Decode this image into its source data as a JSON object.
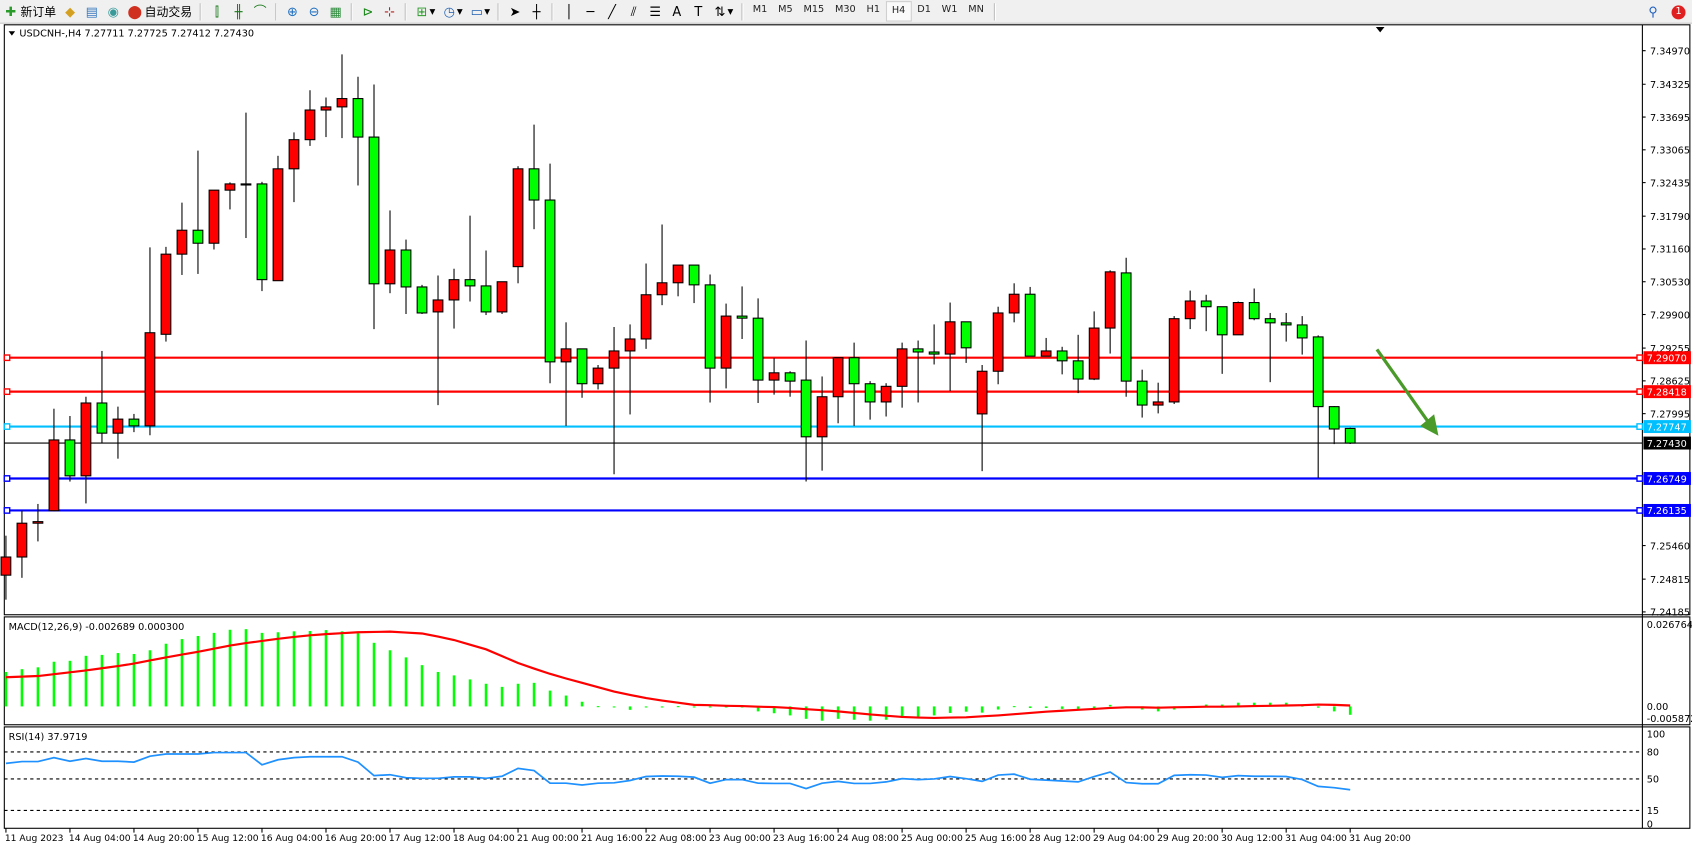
{
  "toolbar": {
    "new_order_label": "新订单",
    "auto_trading_label": "自动交易",
    "timeframes": [
      "M1",
      "M5",
      "M15",
      "M30",
      "H1",
      "H4",
      "D1",
      "W1",
      "MN"
    ],
    "active_timeframe": "H4",
    "notification_count": "1"
  },
  "chart": {
    "title": "USDCNH-,H4  7.27711 7.27725 7.27412 7.27430",
    "colors": {
      "up": "#ff0000",
      "down": "#00ff00",
      "macd_hist": "#00ff00",
      "macd_signal": "#ff0000",
      "rsi": "#1e90ff",
      "arrow": "#4a9a2a"
    }
  },
  "chart_data": [
    {
      "type": "candlestick",
      "title": "USDCNH-,H4  7.27711 7.27725 7.27412 7.27430",
      "ohlc_order": [
        "open",
        "high",
        "low",
        "close"
      ],
      "candles": [
        [
          7.24891,
          7.2565,
          7.2442,
          7.2524
        ],
        [
          7.2524,
          7.2613,
          7.2484,
          7.2589
        ],
        [
          7.2589,
          7.2626,
          7.2554,
          7.2592
        ],
        [
          7.2613,
          7.2809,
          7.2612,
          7.2749
        ],
        [
          7.2749,
          7.2795,
          7.2669,
          7.268
        ],
        [
          7.268,
          7.2832,
          7.2627,
          7.282
        ],
        [
          7.282,
          7.292,
          7.2743,
          7.2762
        ],
        [
          7.2762,
          7.2813,
          7.2713,
          7.2789
        ],
        [
          7.2789,
          7.2799,
          7.2764,
          7.2776
        ],
        [
          7.2776,
          7.3119,
          7.2758,
          7.2955
        ],
        [
          7.2952,
          7.312,
          7.2938,
          7.3106
        ],
        [
          7.3106,
          7.3205,
          7.3066,
          7.3152
        ],
        [
          7.3152,
          7.3305,
          7.3068,
          7.3127
        ],
        [
          7.3127,
          7.3229,
          7.3115,
          7.3229
        ],
        [
          7.3229,
          7.3244,
          7.3192,
          7.3241
        ],
        [
          7.3241,
          7.3378,
          7.3137,
          7.3241
        ],
        [
          7.3241,
          7.3245,
          7.3035,
          7.3057
        ],
        [
          7.3055,
          7.3295,
          7.3055,
          7.327
        ],
        [
          7.327,
          7.334,
          7.3206,
          7.3326
        ],
        [
          7.3326,
          7.3421,
          7.3314,
          7.3383
        ],
        [
          7.3383,
          7.3407,
          7.3331,
          7.3389
        ],
        [
          7.3389,
          7.349,
          7.3329,
          7.3405
        ],
        [
          7.3405,
          7.3447,
          7.3238,
          7.3331
        ],
        [
          7.3331,
          7.3432,
          7.2962,
          7.3049
        ],
        [
          7.3049,
          7.319,
          7.3031,
          7.3114
        ],
        [
          7.3114,
          7.3134,
          7.2991,
          7.3043
        ],
        [
          7.3043,
          7.3047,
          7.2991,
          7.2993
        ],
        [
          7.2995,
          7.3065,
          7.2816,
          7.3018
        ],
        [
          7.3018,
          7.3078,
          7.2963,
          7.3057
        ],
        [
          7.3057,
          7.318,
          7.3015,
          7.3045
        ],
        [
          7.3045,
          7.3113,
          7.2989,
          7.2995
        ],
        [
          7.2995,
          7.3053,
          7.2991,
          7.3053
        ],
        [
          7.3082,
          7.3275,
          7.305,
          7.327
        ],
        [
          7.327,
          7.3355,
          7.3154,
          7.321
        ],
        [
          7.321,
          7.328,
          7.2858,
          7.2899
        ],
        [
          7.2899,
          7.2975,
          7.2776,
          7.2924
        ],
        [
          7.2924,
          7.2924,
          7.283,
          7.2857
        ],
        [
          7.2857,
          7.2893,
          7.2846,
          7.2887
        ],
        [
          7.2887,
          7.2966,
          7.2683,
          7.292
        ],
        [
          7.292,
          7.2971,
          7.2798,
          7.2943
        ],
        [
          7.2943,
          7.3088,
          7.2924,
          7.3028
        ],
        [
          7.3028,
          7.3163,
          7.3008,
          7.3051
        ],
        [
          7.3051,
          7.3085,
          7.3025,
          7.3085
        ],
        [
          7.3085,
          7.3085,
          7.3012,
          7.3047
        ],
        [
          7.3047,
          7.3067,
          7.2821,
          7.2887
        ],
        [
          7.2887,
          7.3011,
          7.2848,
          7.2987
        ],
        [
          7.2987,
          7.3044,
          7.2943,
          7.2983
        ],
        [
          7.2983,
          7.3021,
          7.282,
          7.2864
        ],
        [
          7.2864,
          7.2906,
          7.2836,
          7.2878
        ],
        [
          7.2878,
          7.2881,
          7.2832,
          7.2862
        ],
        [
          7.2864,
          7.294,
          7.2669,
          7.2755
        ],
        [
          7.2755,
          7.2871,
          7.269,
          7.2832
        ],
        [
          7.2832,
          7.2907,
          7.2781,
          7.2907
        ],
        [
          7.2907,
          7.2936,
          7.2776,
          7.2857
        ],
        [
          7.2857,
          7.2862,
          7.2788,
          7.2822
        ],
        [
          7.2822,
          7.2858,
          7.2794,
          7.2852
        ],
        [
          7.2852,
          7.2936,
          7.2811,
          7.2924
        ],
        [
          7.2924,
          7.294,
          7.2821,
          7.2918
        ],
        [
          7.2918,
          7.2971,
          7.2894,
          7.2914
        ],
        [
          7.2914,
          7.3013,
          7.2843,
          7.2976
        ],
        [
          7.2976,
          7.2976,
          7.2897,
          7.2926
        ],
        [
          7.2799,
          7.2893,
          7.2689,
          7.2881
        ],
        [
          7.2881,
          7.3005,
          7.2856,
          7.2993
        ],
        [
          7.2993,
          7.305,
          7.2975,
          7.3029
        ],
        [
          7.3029,
          7.3043,
          7.291,
          7.291
        ],
        [
          7.291,
          7.2945,
          7.291,
          7.292
        ],
        [
          7.292,
          7.2928,
          7.2875,
          7.2901
        ],
        [
          7.2901,
          7.2951,
          7.2839,
          7.2866
        ],
        [
          7.2866,
          7.2996,
          7.2864,
          7.2964
        ],
        [
          7.2964,
          7.3075,
          7.2915,
          7.3072
        ],
        [
          7.307,
          7.3099,
          7.2832,
          7.2862
        ],
        [
          7.2862,
          7.2884,
          7.2792,
          7.2816
        ],
        [
          7.2816,
          7.2859,
          7.28,
          7.2822
        ],
        [
          7.2822,
          7.2987,
          7.2818,
          7.2982
        ],
        [
          7.2982,
          7.3036,
          7.2962,
          7.3016
        ],
        [
          7.3016,
          7.3028,
          7.2958,
          7.3005
        ],
        [
          7.3005,
          7.3005,
          7.2876,
          7.2951
        ],
        [
          7.2951,
          7.3015,
          7.2951,
          7.3013
        ],
        [
          7.3013,
          7.304,
          7.2979,
          7.2982
        ],
        [
          7.2982,
          7.2993,
          7.286,
          7.2974
        ],
        [
          7.2974,
          7.2993,
          7.2938,
          7.297
        ],
        [
          7.297,
          7.2987,
          7.2913,
          7.2945
        ],
        [
          7.2947,
          7.295,
          7.2676,
          7.2813
        ],
        [
          7.2813,
          7.2814,
          7.2741,
          7.277
        ],
        [
          7.27711,
          7.27725,
          7.27412,
          7.2743
        ]
      ],
      "ylim": [
        7.2415,
        7.3545
      ],
      "y_tick_labels": [
        "7.34970",
        "7.34325",
        "7.33695",
        "7.33065",
        "7.32435",
        "7.31790",
        "7.31160",
        "7.30530",
        "7.29900",
        "7.29255",
        "7.28625",
        "7.27995",
        "7.25460",
        "7.24815",
        "7.24185"
      ],
      "x_tick_labels": [
        "11 Aug 2023",
        "14 Aug 04:00",
        "14 Aug 20:00",
        "15 Aug 12:00",
        "16 Aug 04:00",
        "16 Aug 20:00",
        "17 Aug 12:00",
        "18 Aug 04:00",
        "21 Aug 00:00",
        "21 Aug 16:00",
        "22 Aug 08:00",
        "23 Aug 00:00",
        "23 Aug 16:00",
        "24 Aug 08:00",
        "25 Aug 00:00",
        "25 Aug 16:00",
        "28 Aug 12:00",
        "29 Aug 04:00",
        "29 Aug 20:00",
        "30 Aug 12:00",
        "31 Aug 04:00",
        "31 Aug 20:00"
      ],
      "horizontal_lines": [
        {
          "price": 7.2907,
          "label": "7.29070",
          "color": "#ff0000"
        },
        {
          "price": 7.28418,
          "label": "7.28418",
          "color": "#ff0000"
        },
        {
          "price": 7.27747,
          "label": "7.27747",
          "color": "#00bfff"
        },
        {
          "price": 7.26749,
          "label": "7.26749",
          "color": "#0000ff"
        },
        {
          "price": 7.26135,
          "label": "7.26135",
          "color": "#0000ff"
        }
      ],
      "current_price": {
        "price": 7.2743,
        "label": "7.27430",
        "color": "#000000"
      },
      "annotation": {
        "type": "arrow",
        "direction": "down-right",
        "color": "#4a9a2a",
        "from_price": 7.2923,
        "to_price": 7.2757
      }
    },
    {
      "type": "bar+line",
      "title": "MACD(12,26,9) -0.002689 0.000300",
      "y_tick_labels": [
        "0.026764",
        "0.00",
        "-0.005872"
      ],
      "ylim": [
        -0.005872,
        0.026764
      ],
      "histogram": [
        0.0111,
        0.012,
        0.0126,
        0.0144,
        0.0147,
        0.0163,
        0.0166,
        0.0172,
        0.0169,
        0.0181,
        0.0202,
        0.0217,
        0.0227,
        0.0237,
        0.0247,
        0.0249,
        0.0237,
        0.0239,
        0.0242,
        0.0243,
        0.0246,
        0.0242,
        0.0236,
        0.0205,
        0.0181,
        0.0158,
        0.0133,
        0.0111,
        0.01,
        0.0087,
        0.0073,
        0.0063,
        0.0073,
        0.0076,
        0.0051,
        0.0035,
        0.0015,
        0.0001,
        -0.0003,
        -0.0011,
        -0.0003,
        -0.0002,
        0.0001,
        0.0,
        -0.0003,
        -0.0003,
        -0.0001,
        -0.0016,
        -0.0022,
        -0.0029,
        -0.004,
        -0.0046,
        -0.004,
        -0.0043,
        -0.0046,
        -0.0043,
        -0.0037,
        -0.0034,
        -0.0029,
        -0.0021,
        -0.0017,
        -0.002,
        -0.001,
        0.0001,
        -0.0005,
        -0.0005,
        -0.0008,
        -0.0008,
        -0.0005,
        0.0005,
        -0.0002,
        -0.001,
        -0.0016,
        -0.001,
        -0.0004,
        0.0006,
        0.0006,
        0.0012,
        0.0012,
        0.0012,
        0.0012,
        0.0003,
        -0.0004,
        -0.0016,
        -0.0027
      ],
      "signal": [
        0.0094,
        0.0096,
        0.0098,
        0.0104,
        0.011,
        0.0116,
        0.0123,
        0.013,
        0.0138,
        0.0148,
        0.0158,
        0.0167,
        0.0176,
        0.0186,
        0.0196,
        0.0204,
        0.0211,
        0.0218,
        0.0224,
        0.0229,
        0.0233,
        0.0236,
        0.0239,
        0.024,
        0.0241,
        0.0238,
        0.0235,
        0.0225,
        0.0214,
        0.0199,
        0.0184,
        0.0162,
        0.014,
        0.0122,
        0.0105,
        0.009,
        0.0076,
        0.0062,
        0.0048,
        0.0037,
        0.0027,
        0.0019,
        0.0012,
        0.0005,
        0.0004,
        0.0002,
        0.0001,
        -0.0001,
        -0.0002,
        -0.0005,
        -0.0009,
        -0.0012,
        -0.0016,
        -0.0021,
        -0.0026,
        -0.003,
        -0.0034,
        -0.0036,
        -0.0037,
        -0.0036,
        -0.0035,
        -0.0032,
        -0.0029,
        -0.0025,
        -0.0021,
        -0.0017,
        -0.0014,
        -0.0011,
        -0.0008,
        -0.0005,
        -0.0003,
        -0.0003,
        -0.0004,
        -0.0003,
        -0.0002,
        -0.0001,
        -0.0001,
        0.0,
        0.0001,
        0.0002,
        0.0003,
        0.0004,
        0.0006,
        0.0005,
        0.0003
      ]
    },
    {
      "type": "line",
      "title": "RSI(14) 37.9719",
      "y_tick_labels": [
        "100",
        "80",
        "50",
        "15",
        "0"
      ],
      "levels": [
        80,
        50,
        15
      ],
      "ylim": [
        0,
        100
      ],
      "values": [
        67.3,
        69.3,
        69.3,
        73.7,
        69.7,
        72.7,
        69.7,
        69.7,
        68.7,
        75.3,
        77.7,
        77.7,
        77.7,
        79.3,
        79.3,
        79.3,
        65.7,
        71.3,
        73.7,
        74.7,
        74.7,
        74.7,
        68.7,
        53.7,
        54.7,
        51.3,
        50.7,
        50.7,
        52.3,
        52.3,
        50.7,
        53,
        61.7,
        59.3,
        45.3,
        45.3,
        43.3,
        45.3,
        45.7,
        48.3,
        52.7,
        53.3,
        53,
        52,
        45.3,
        49.3,
        49.3,
        45.3,
        45,
        45,
        39.3,
        45.3,
        47.3,
        45,
        45,
        46.7,
        50.3,
        49.3,
        50,
        52.7,
        50.3,
        47.3,
        54.3,
        55.3,
        49.7,
        48.7,
        47.7,
        46.7,
        52.7,
        57.7,
        46,
        44.7,
        44.7,
        54,
        54.7,
        54.3,
        51.7,
        53.7,
        53,
        53,
        52.7,
        49.3,
        41.7,
        40.3,
        37.97
      ]
    }
  ]
}
